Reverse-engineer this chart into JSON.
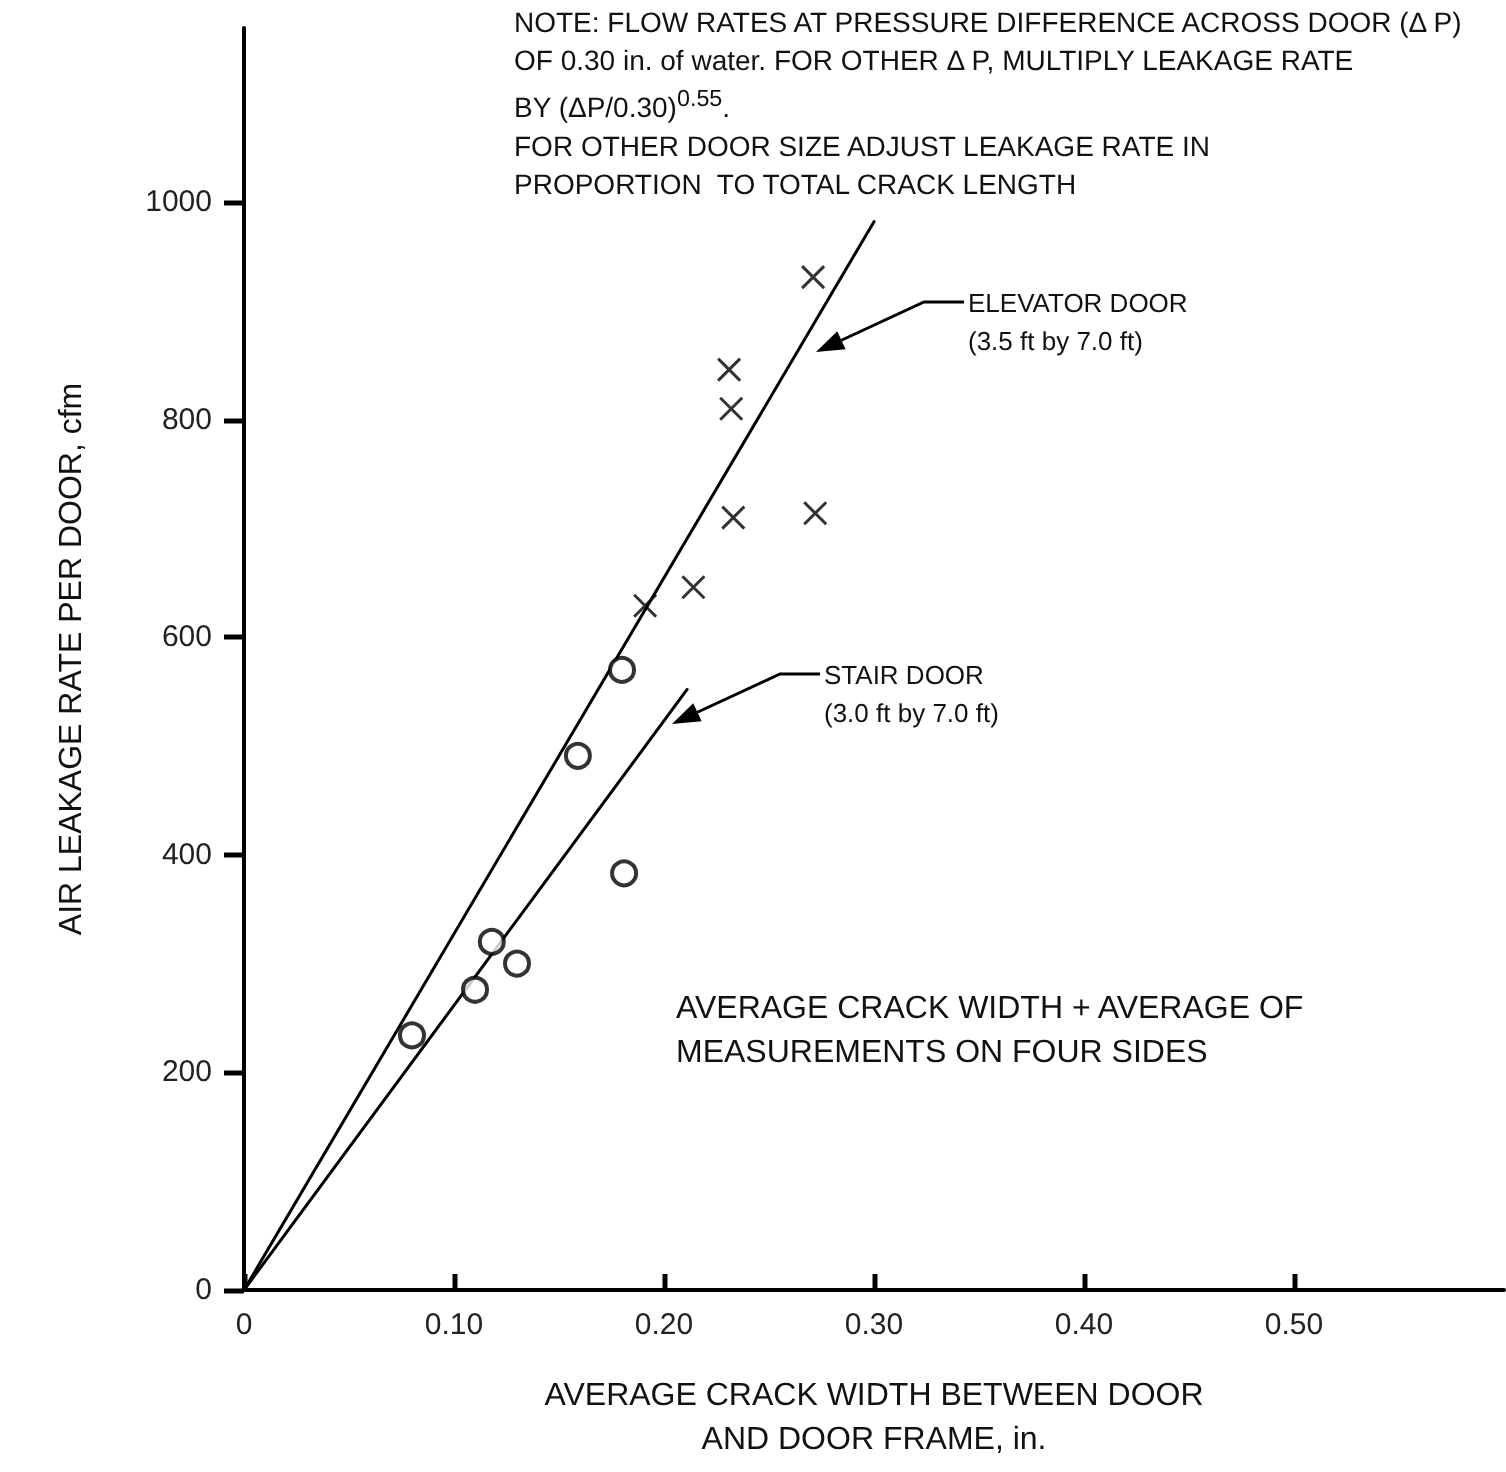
{
  "chart_data": {
    "type": "scatter",
    "xlabel": "AVERAGE CRACK WIDTH BETWEEN DOOR\nAND DOOR FRAME, in.",
    "ylabel": "AIR LEAKAGE RATE PER DOOR, cfm",
    "xlim": [
      0,
      0.6
    ],
    "ylim": [
      0,
      1160
    ],
    "xticks": [
      0,
      {
        "value": 0.1,
        "label": "0.10"
      },
      {
        "value": 0.2,
        "label": "0.20"
      },
      {
        "value": 0.3,
        "label": "0.30"
      },
      {
        "value": 0.4,
        "label": "0.40"
      },
      {
        "value": 0.5,
        "label": "0.50"
      }
    ],
    "yticks": [
      0,
      200,
      400,
      600,
      800,
      1000
    ],
    "grid": false,
    "legend": false,
    "series": [
      {
        "marker": "circle",
        "color": "#000000",
        "x": [
          0.08,
          0.11,
          0.118,
          0.13,
          0.159,
          0.18,
          0.181
        ],
        "values": [
          234,
          276,
          320,
          300,
          491,
          570,
          383
        ]
      },
      {
        "marker": "cross",
        "color": "#000000",
        "x": [
          0.191,
          0.214,
          0.233,
          0.272,
          0.232,
          0.231,
          0.271
        ],
        "values": [
          629,
          646,
          710,
          714,
          810,
          846,
          931
        ]
      },
      {
        "type": "line",
        "marker": "none",
        "line_style": "solid",
        "color": "#000000",
        "x": [
          0,
          0.3
        ],
        "values": [
          0,
          982
        ]
      },
      {
        "type": "line",
        "marker": "none",
        "line_style": "solid",
        "color": "#000000",
        "x": [
          0,
          0.211
        ],
        "values": [
          0,
          552
        ]
      }
    ],
    "annotations": [
      "NOTE: FLOW RATES AT PRESSURE DIFFERENCE ACROSS DOOR (Δ P)\nOF 0.30 in. of water. FOR OTHER Δ P, MULTIPLY LEAKAGE RATE\nBY (ΔP/0.30)$^{0.55}$.\nFOR OTHER DOOR SIZE ADJUST LEAKAGE RATE IN\nPROPORTION  TO TOTAL CRACK LENGTH",
      "AVERAGE CRACK WIDTH + AVERAGE OF\nMEASUREMENTS ON FOUR SIDES",
      "ELEVATOR DOOR\n(3.5 ft by 7.0 ft)",
      "STAIR DOOR\n(3.0 ft by 7.0 ft)"
    ]
  }
}
